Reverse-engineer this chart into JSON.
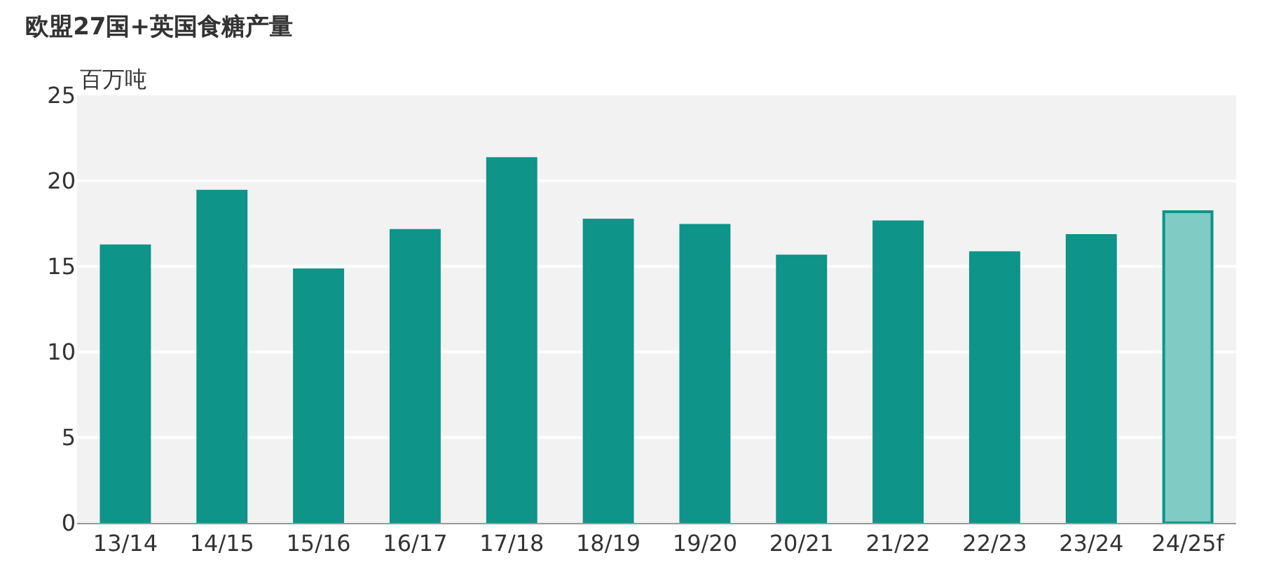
{
  "chart_data": {
    "type": "bar",
    "title": "欧盟27国+英国食糖产量",
    "ylabel": "百万吨",
    "categories": [
      "13/14",
      "14/15",
      "15/16",
      "16/17",
      "17/18",
      "18/19",
      "19/20",
      "20/21",
      "21/22",
      "22/23",
      "23/24",
      "24/25f"
    ],
    "values": [
      16.2,
      19.4,
      14.8,
      17.1,
      21.3,
      17.7,
      17.4,
      15.6,
      17.6,
      15.8,
      16.8,
      18.2
    ],
    "color": "#0e9488",
    "colors": [
      "#0e9488",
      "#0e9488",
      "#0e9488",
      "#0e9488",
      "#0e9488",
      "#0e9488",
      "#0e9488",
      "#0e9488",
      "#0e9488",
      "#0e9488",
      "#0e9488",
      "#80cbc4"
    ],
    "ylim": [
      0,
      25
    ],
    "yticks": [
      0,
      5,
      10,
      15,
      20,
      25
    ],
    "grid": "y"
  }
}
